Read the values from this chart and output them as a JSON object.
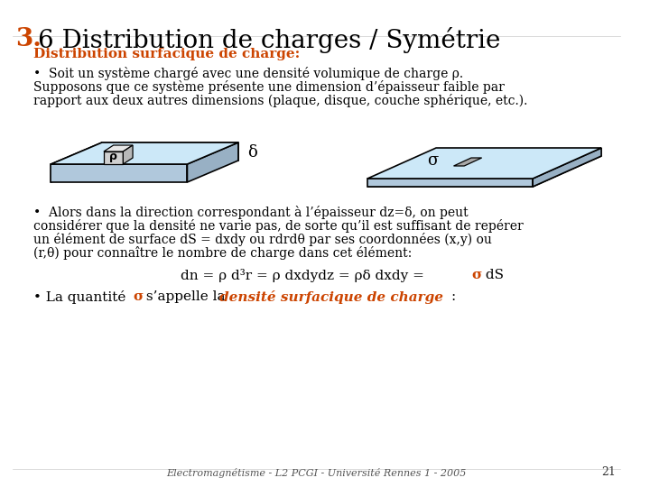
{
  "title_bold": "3.",
  "title_rest": "6 Distribution de charges / Symétrie",
  "subtitle": "Distribution surfacique de charge:",
  "subtitle_color": "#cc4400",
  "para1_lines": [
    "•  Soit un système chargé avec une densité volumique de charge ρ.",
    "Supposons que ce système présente une dimension d’épaisseur faible par",
    "rapport aux deux autres dimensions (plaque, disque, couche sphérique, etc.)."
  ],
  "para2_lines": [
    "•  Alors dans la direction correspondant à l’épaisseur dz=δ, on peut",
    "considérer que la densité ne varie pas, de sorte qu’il est suffisant de repérer",
    "un élément de surface dS = dxdy ou rdrdθ par ses coordonnées (x,y) ou",
    "(r,θ) pour connaître le nombre de charge dans cet élément:"
  ],
  "formula_pre": "dn = ρ d³r = ρ dxdydz = ρδ dxdy = ",
  "formula_sigma": "σ",
  "formula_post": " dS",
  "para3_pre": "• La quantité ",
  "para3_sigma": "σ",
  "para3_mid": " s’appelle la ",
  "para3_italic": "densité surfacique de charge",
  "para3_post": ":",
  "footer": "Electromagnétisme - L2 PCGI - Université Rennes 1 - 2005",
  "page_num": "21",
  "bg_color": "#ffffff",
  "text_color": "#000000",
  "accent_color": "#cc4400",
  "slab_top": "#cce8f8",
  "slab_front": "#b0c8dc",
  "slab_right": "#98b0c4",
  "slab_back": "#a0b8cc",
  "slab_left": "#90a8bc",
  "small_box_front": "#d0d0d0",
  "small_box_top": "#e8e8e8",
  "small_box_right": "#b8b8b8",
  "ds_color": "#a8a8a8"
}
